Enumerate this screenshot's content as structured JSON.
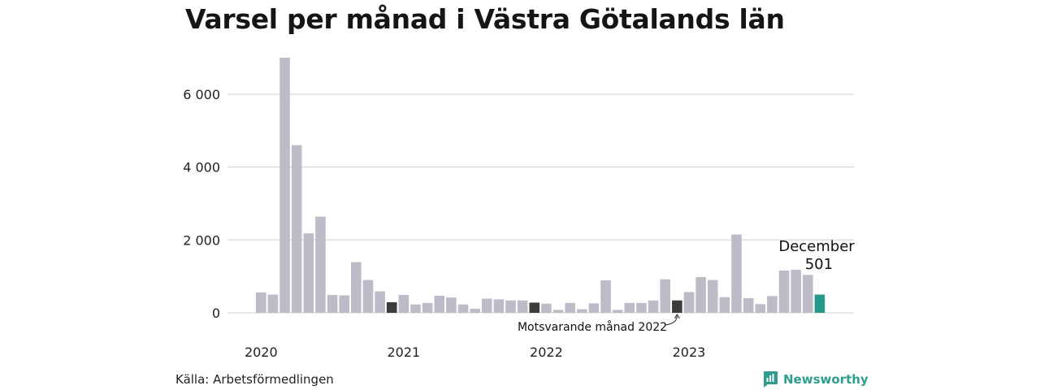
{
  "chart_data": {
    "type": "bar",
    "title": "Varsel per månad i Västra Götalands län",
    "xlabel": "",
    "ylabel": "",
    "ylim": [
      0,
      7000
    ],
    "yticks": [
      0,
      2000,
      4000,
      6000
    ],
    "ytick_labels": [
      "0",
      "2 000",
      "4 000",
      "6 000"
    ],
    "grid": true,
    "x_year_labels": [
      "2020",
      "2021",
      "2022",
      "2023"
    ],
    "x": [
      "2020-01",
      "2020-02",
      "2020-03",
      "2020-04",
      "2020-05",
      "2020-06",
      "2020-07",
      "2020-08",
      "2020-09",
      "2020-10",
      "2020-11",
      "2020-12",
      "2021-01",
      "2021-02",
      "2021-03",
      "2021-04",
      "2021-05",
      "2021-06",
      "2021-07",
      "2021-08",
      "2021-09",
      "2021-10",
      "2021-11",
      "2021-12",
      "2022-01",
      "2022-02",
      "2022-03",
      "2022-04",
      "2022-05",
      "2022-06",
      "2022-07",
      "2022-08",
      "2022-09",
      "2022-10",
      "2022-11",
      "2022-12",
      "2023-01",
      "2023-02",
      "2023-03",
      "2023-04",
      "2023-05",
      "2023-06",
      "2023-07",
      "2023-08",
      "2023-09",
      "2023-10",
      "2023-11",
      "2023-12"
    ],
    "values": [
      560,
      500,
      7000,
      4600,
      2180,
      2640,
      490,
      480,
      1390,
      900,
      590,
      290,
      490,
      230,
      270,
      470,
      420,
      230,
      110,
      390,
      370,
      340,
      340,
      280,
      250,
      80,
      270,
      100,
      260,
      890,
      80,
      270,
      270,
      340,
      920,
      340,
      570,
      980,
      900,
      430,
      2150,
      400,
      240,
      460,
      1160,
      1180,
      1040,
      501
    ],
    "colors": {
      "default": "#bdbbc8",
      "highlight_past": "#3c3c3c",
      "highlight_current": "#27998b",
      "gridline": "#d9d9d9",
      "brand": "#2e9d8e"
    },
    "highlight_past_indices": [
      11,
      23,
      35
    ],
    "highlight_current_index": 47,
    "annotation_current": {
      "line1": "December",
      "line2": "501"
    },
    "annotation_past": "Motsvarande månad 2022"
  },
  "source": "Källa: Arbetsförmedlingen",
  "brand": {
    "name": "Newsworthy",
    "icon": "bar-chart-logo-icon"
  }
}
